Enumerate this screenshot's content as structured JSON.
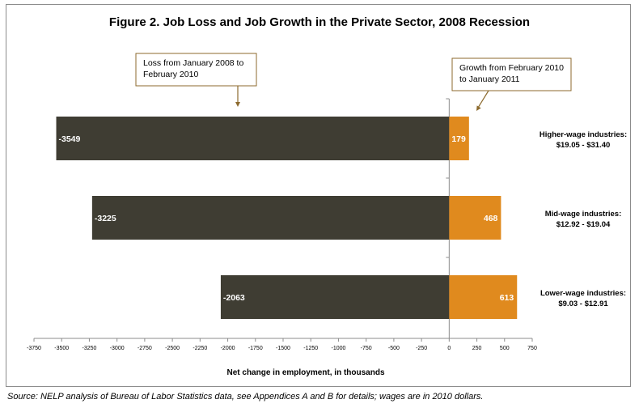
{
  "chart_data": {
    "type": "bar",
    "orientation": "horizontal",
    "title": "Figure 2.  Job Loss and Job Growth in the Private Sector, 2008 Recession",
    "xlabel": "Net change in employment, in thousands",
    "ylabel": "",
    "xlim": [
      -3750,
      750
    ],
    "x_ticks": [
      -3750,
      -3500,
      -3250,
      -3000,
      -2750,
      -2500,
      -2250,
      -2000,
      -1750,
      -1500,
      -1250,
      -1000,
      -750,
      -500,
      -250,
      0,
      250,
      500,
      750
    ],
    "categories": [
      {
        "line1": "Higher-wage industries:",
        "line2": "$19.05 - $31.40"
      },
      {
        "line1": "Mid-wage industries:",
        "line2": "$12.92 - $19.04"
      },
      {
        "line1": "Lower-wage industries:",
        "line2": "$9.03 - $12.91"
      }
    ],
    "series": [
      {
        "name": "Loss from January 2008 to February 2010",
        "color": "#3f3d33",
        "values": [
          -3549,
          -3225,
          -2063
        ]
      },
      {
        "name": "Growth from February 2010 to January 2011",
        "color": "#e08a1e",
        "values": [
          179,
          468,
          613
        ]
      }
    ],
    "annotations": [
      {
        "lines": [
          "Loss from January 2008 to",
          "February 2010"
        ],
        "points_to": "loss-series"
      },
      {
        "lines": [
          "Growth from February 2010",
          "to January 2011"
        ],
        "points_to": "growth-series"
      }
    ],
    "callout_border_color": "#8c6a2e",
    "grid": false
  },
  "source_note": "Source: NELP analysis of Bureau of Labor Statistics data, see Appendices A and B for details; wages are in 2010 dollars."
}
